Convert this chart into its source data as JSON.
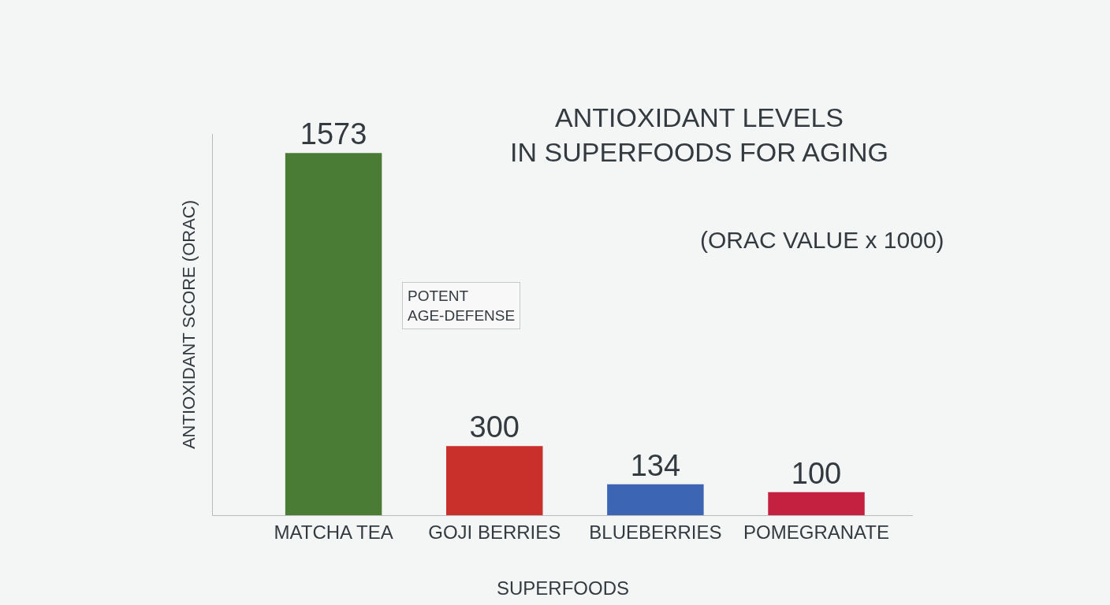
{
  "chart_data": {
    "type": "bar",
    "title": "ANTIOXIDANT LEVELS\nIN SUPERFOODS FOR AGING",
    "subtitle": "(ORAC VALUE x 1000)",
    "xlabel": "SUPERFOODS",
    "ylabel": "ANTIOXIDANT SCORE (ORAC)",
    "categories": [
      "MATCHA TEA",
      "GOJI BERRIES",
      "BLUEBERRIES",
      "POMEGRANATE"
    ],
    "values": [
      1573,
      300,
      134,
      100
    ],
    "colors": [
      "#4a7c35",
      "#c9302c",
      "#3c66b4",
      "#c4203f"
    ],
    "data_labels": true,
    "tick_labels": "x",
    "grid": false,
    "legend": false,
    "annotations": [
      "POTENT\nAGE-DEFENSE"
    ]
  }
}
